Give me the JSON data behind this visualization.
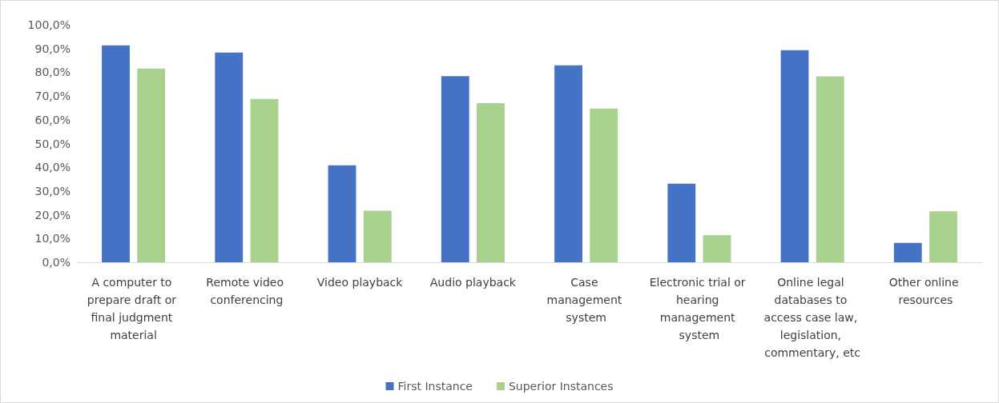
{
  "chart_data": {
    "type": "bar",
    "categories": [
      "A computer to prepare draft or final judgment material",
      "Remote video conferencing",
      "Video playback",
      "Audio playback",
      "Case management system",
      "Electronic trial or hearing management system",
      "Online legal databases to access case law, legislation, commentary, etc",
      "Other online resources"
    ],
    "series": [
      {
        "name": "First Instance",
        "color": "#4472c4",
        "values": [
          91.3,
          88.3,
          40.8,
          78.4,
          82.9,
          33.1,
          89.3,
          8.2
        ]
      },
      {
        "name": "Superior Instances",
        "color": "#a9d18e",
        "values": [
          81.6,
          68.8,
          21.7,
          67.0,
          64.7,
          11.4,
          78.3,
          21.5
        ]
      }
    ],
    "ylim": [
      0,
      100
    ],
    "yticks": [
      {
        "value": 0,
        "label": "0,0%"
      },
      {
        "value": 10,
        "label": "10,0%"
      },
      {
        "value": 20,
        "label": "20,0%"
      },
      {
        "value": 30,
        "label": "30,0%"
      },
      {
        "value": 40,
        "label": "40,0%"
      },
      {
        "value": 50,
        "label": "50,0%"
      },
      {
        "value": 60,
        "label": "60,0%"
      },
      {
        "value": 70,
        "label": "70,0%"
      },
      {
        "value": 80,
        "label": "80,0%"
      },
      {
        "value": 90,
        "label": "90,0%"
      },
      {
        "value": 100,
        "label": "100,0%"
      }
    ],
    "grid": false,
    "legend": "bottom"
  }
}
